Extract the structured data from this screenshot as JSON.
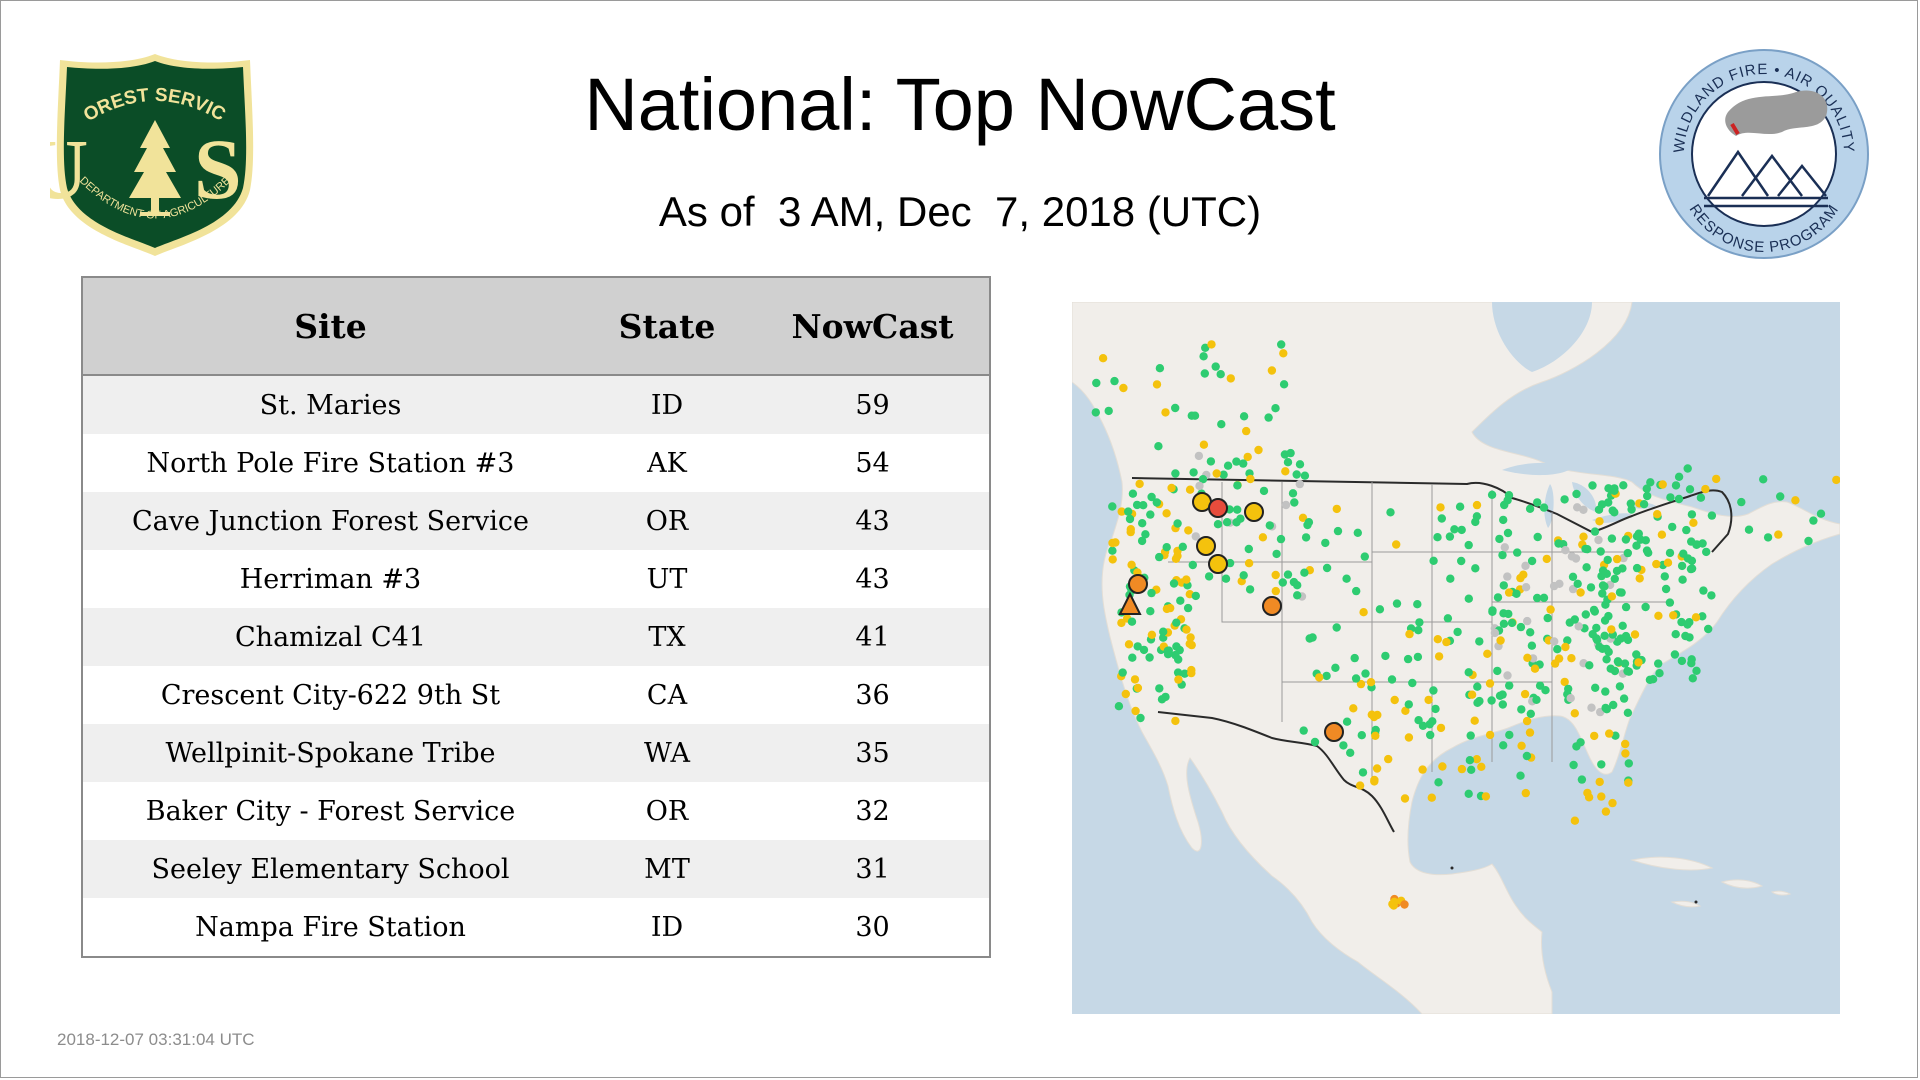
{
  "title": "National: Top NowCast",
  "subtitle": "As of  3 AM, Dec  7, 2018 (UTC)",
  "timestamp": "2018-12-07 03:31:04 UTC",
  "logos": {
    "usfs": {
      "top_text": "FOREST SERVICE",
      "letters": "U S",
      "bottom_text": "DEPARTMENT OF AGRICULTURE",
      "colors": {
        "shield": "#0b4d27",
        "gold": "#f1e39a"
      }
    },
    "wfaq": {
      "top_text": "WILDLAND FIRE • AIR QUALITY",
      "bottom_text": "RESPONSE PROGRAM",
      "colors": {
        "ring": "#b9d3ea",
        "text": "#1a2f55"
      }
    }
  },
  "table": {
    "headers": [
      "Site",
      "State",
      "NowCast"
    ],
    "rows": [
      {
        "site": "St. Maries",
        "state": "ID",
        "nowcast": "59"
      },
      {
        "site": "North Pole Fire Station #3",
        "state": "AK",
        "nowcast": "54"
      },
      {
        "site": "Cave Junction Forest Service",
        "state": "OR",
        "nowcast": "43"
      },
      {
        "site": "Herriman #3",
        "state": "UT",
        "nowcast": "43"
      },
      {
        "site": "Chamizal C41",
        "state": "TX",
        "nowcast": "41"
      },
      {
        "site": "Crescent City-622 9th St",
        "state": "CA",
        "nowcast": "36"
      },
      {
        "site": "Wellpinit-Spokane Tribe",
        "state": "WA",
        "nowcast": "35"
      },
      {
        "site": "Baker City - Forest Service",
        "state": "OR",
        "nowcast": "32"
      },
      {
        "site": "Seeley Elementary School",
        "state": "MT",
        "nowcast": "31"
      },
      {
        "site": "Nampa Fire Station",
        "state": "ID",
        "nowcast": "30"
      }
    ]
  },
  "map": {
    "colors": {
      "ocean": "#c6d8e6",
      "land": "#f1eeea",
      "good": "#2ecc71",
      "moderate": "#f4c20d",
      "usg": "#f08a24",
      "unhealthy": "#e74c3c",
      "no_data": "#c2c2c2"
    }
  }
}
